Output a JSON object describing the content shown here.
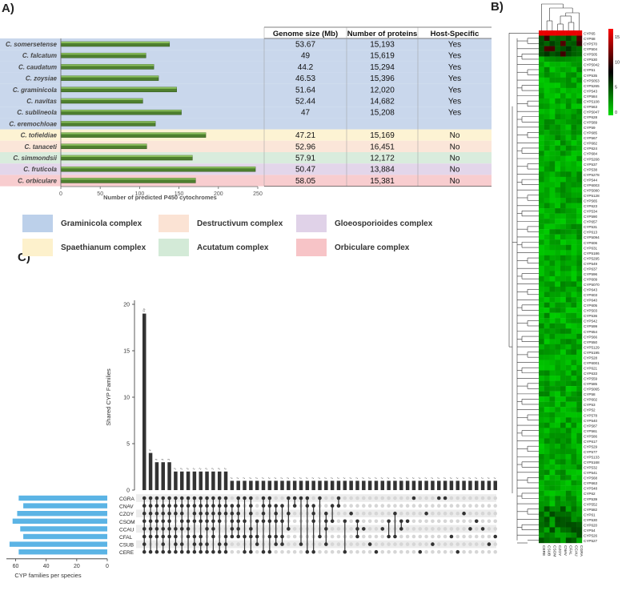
{
  "panels": {
    "a": "A)",
    "b": "B)",
    "c": "C)"
  },
  "panel_a": {
    "xlabel": "Number of predicted P450 cytochromes",
    "xticks": [
      "0",
      "50",
      "100",
      "150",
      "200",
      "250"
    ],
    "table_headers": [
      "Genome size (Mb)",
      "Number of proteins",
      "Host-Specific"
    ],
    "rows": [
      {
        "species": "C. somersetense",
        "p450": 138,
        "genome": "53.67",
        "proteins": "15,193",
        "host": "Yes",
        "complex": "graminicola"
      },
      {
        "species": "C. falcatum",
        "p450": 108,
        "genome": "49",
        "proteins": "15,619",
        "host": "Yes",
        "complex": "graminicola"
      },
      {
        "species": "C. caudatum",
        "p450": 118,
        "genome": "44.2",
        "proteins": "15,294",
        "host": "Yes",
        "complex": "graminicola"
      },
      {
        "species": "C. zoysiae",
        "p450": 124,
        "genome": "46.53",
        "proteins": "15,396",
        "host": "Yes",
        "complex": "graminicola"
      },
      {
        "species": "C. graminicola",
        "p450": 147,
        "genome": "51.64",
        "proteins": "12,020",
        "host": "Yes",
        "complex": "graminicola"
      },
      {
        "species": "C. navitas",
        "p450": 104,
        "genome": "52.44",
        "proteins": "14,682",
        "host": "Yes",
        "complex": "graminicola"
      },
      {
        "species": "C. sublineola",
        "p450": 153,
        "genome": "47",
        "proteins": "15,208",
        "host": "Yes",
        "complex": "graminicola"
      },
      {
        "species": "C. eremochloae",
        "p450": 120,
        "genome": "",
        "proteins": "",
        "host": "",
        "complex": "graminicola"
      },
      {
        "species": "C. tofieldiae",
        "p450": 184,
        "genome": "47.21",
        "proteins": "15,169",
        "host": "No",
        "complex": "spaethianum"
      },
      {
        "species": "C. tanaceti",
        "p450": 109,
        "genome": "52.96",
        "proteins": "16,451",
        "host": "No",
        "complex": "destructivum"
      },
      {
        "species": "C. simmondsii",
        "p450": 167,
        "genome": "57.91",
        "proteins": "12,172",
        "host": "No",
        "complex": "acutatum"
      },
      {
        "species": "C. fruticola",
        "p450": 247,
        "genome": "50.47",
        "proteins": "13,884",
        "host": "No",
        "complex": "gloeosporioides"
      },
      {
        "species": "C. orbiculare",
        "p450": 171,
        "genome": "58.05",
        "proteins": "15,381",
        "host": "No",
        "complex": "orbiculare"
      }
    ],
    "complex_colors": {
      "graminicola": "#c9d7ec",
      "spaethianum": "#fdf3d3",
      "destructivum": "#fbe6d9",
      "acutatum": "#d9ecdd",
      "gloeosporioides": "#e3d6ea",
      "orbiculare": "#f8cdcf"
    },
    "bar_color": "#4e7f2f"
  },
  "legend": [
    {
      "label": "Graminicola complex",
      "color": "#bcd0ea"
    },
    {
      "label": "Destructivum complex",
      "color": "#fbe3d4"
    },
    {
      "label": "Gloeosporioides complex",
      "color": "#e0d2e8"
    },
    {
      "label": "Spaethianum complex",
      "color": "#fdf1cc"
    },
    {
      "label": "Acutatum complex",
      "color": "#d3ead7"
    },
    {
      "label": "Orbiculare complex",
      "color": "#f7c4c7"
    }
  ],
  "panel_b": {
    "scale_ticks": [
      "15",
      "10",
      "5",
      "0"
    ],
    "columns": [
      "CERE",
      "CSUB",
      "CSOM",
      "CZOY",
      "CNAV",
      "CFAL",
      "CCAU",
      "CGRA"
    ],
    "rows": [
      "CYP65",
      "CYP68",
      "CYP570",
      "CYP504",
      "CYP505",
      "CYP530",
      "CYP5042",
      "CYP51",
      "CYP535",
      "CYP5053",
      "CYP5265",
      "CYP543",
      "CYP584",
      "CYP5108",
      "CYP563",
      "CYP5047",
      "CYP628",
      "CYP589",
      "CYP59",
      "CYP685",
      "CYP567",
      "CYP682",
      "CYP624",
      "CYP684",
      "CYP5268",
      "CYP537",
      "CYP538",
      "CYP5278",
      "CYP544",
      "CYP6003",
      "CYP5080",
      "CYP5128",
      "CYP565",
      "CYP623",
      "CYP534",
      "CYP590",
      "CYP657",
      "CYP531",
      "CYP613",
      "CYP5094",
      "CYP606",
      "CYP631",
      "CYP5186",
      "CYP5295",
      "CYP549",
      "CYP637",
      "CYP596",
      "CYP609",
      "CYP5070",
      "CYP643",
      "CYP603",
      "CYP640",
      "CYP605",
      "CYP503",
      "CYP536",
      "CYP542",
      "CYP599",
      "CYP654",
      "CYP566",
      "CYP550",
      "CYP5129",
      "CYP5195",
      "CYP528",
      "CYP6001",
      "CYP621",
      "CYP633",
      "CYP559",
      "CYP585",
      "CYP5065",
      "CYP58",
      "CYP602",
      "CYP53",
      "CYP52",
      "CYP578",
      "CYP540",
      "CYP587",
      "CYP561",
      "CYP586",
      "CYP617",
      "CYP529",
      "CYP577",
      "CYP5133",
      "CYP5168",
      "CYP532",
      "CYP541",
      "CYP568",
      "CYP663",
      "CYP548",
      "CYP62",
      "CYP539",
      "CYP552",
      "CYP582",
      "CYP61",
      "CYP530",
      "CYP620",
      "CYP54",
      "CYP526",
      "CYP527"
    ]
  },
  "panel_c": {
    "ylabel": "Shared CYP Families",
    "yticks": [
      "0",
      "5",
      "10",
      "15",
      "20"
    ],
    "xlabel_bottom": "CYP families per species",
    "left_ticks": [
      "60",
      "40",
      "20",
      "0"
    ],
    "species": [
      "CGRA",
      "CNAV",
      "CZOY",
      "CSOM",
      "CCAU",
      "CFAL",
      "CSUB",
      "CERE"
    ],
    "species_totals": [
      58,
      55,
      59,
      62,
      57,
      55,
      64,
      58
    ]
  },
  "chart_data": [
    {
      "type": "bar",
      "title": "",
      "xlabel": "Number of predicted P450 cytochromes",
      "ylabel": "",
      "categories": [
        "C. somersetense",
        "C. falcatum",
        "C. caudatum",
        "C. zoysiae",
        "C. graminicola",
        "C. navitas",
        "C. sublineola",
        "C. eremochloae",
        "C. tofieldiae",
        "C. tanaceti",
        "C. simmondsii",
        "C. fruticola",
        "C. orbiculare"
      ],
      "values": [
        138,
        108,
        118,
        124,
        147,
        104,
        153,
        120,
        184,
        109,
        167,
        247,
        171
      ],
      "xlim": [
        0,
        250
      ],
      "orientation": "horizontal"
    },
    {
      "type": "heatmap",
      "title": "",
      "color_scale": [
        "#00dd00",
        "#000000",
        "#ff0000"
      ],
      "scale_range": [
        0,
        15
      ]
    },
    {
      "type": "bar",
      "title": "",
      "ylabel": "Shared CYP Families",
      "ylim": [
        0,
        20
      ],
      "values": [
        19,
        4,
        3,
        3,
        3,
        2,
        2,
        2,
        2,
        2,
        2,
        2,
        2,
        2,
        1,
        1,
        1,
        1,
        1,
        1,
        1,
        1,
        1,
        1,
        1,
        1,
        1,
        1,
        1,
        1,
        1,
        1,
        1,
        1,
        1,
        1,
        1,
        1,
        1,
        1,
        1,
        1,
        1,
        1,
        1,
        1,
        1,
        1,
        1,
        1,
        1,
        1,
        1,
        1,
        1,
        1,
        1
      ]
    },
    {
      "type": "bar",
      "title": "",
      "xlabel": "CYP families per species",
      "categories": [
        "CGRA",
        "CNAV",
        "CZOY",
        "CSOM",
        "CCAU",
        "CFAL",
        "CSUB",
        "CERE"
      ],
      "values": [
        58,
        55,
        59,
        62,
        57,
        55,
        64,
        58
      ],
      "xlim": [
        65,
        0
      ],
      "orientation": "horizontal"
    }
  ]
}
